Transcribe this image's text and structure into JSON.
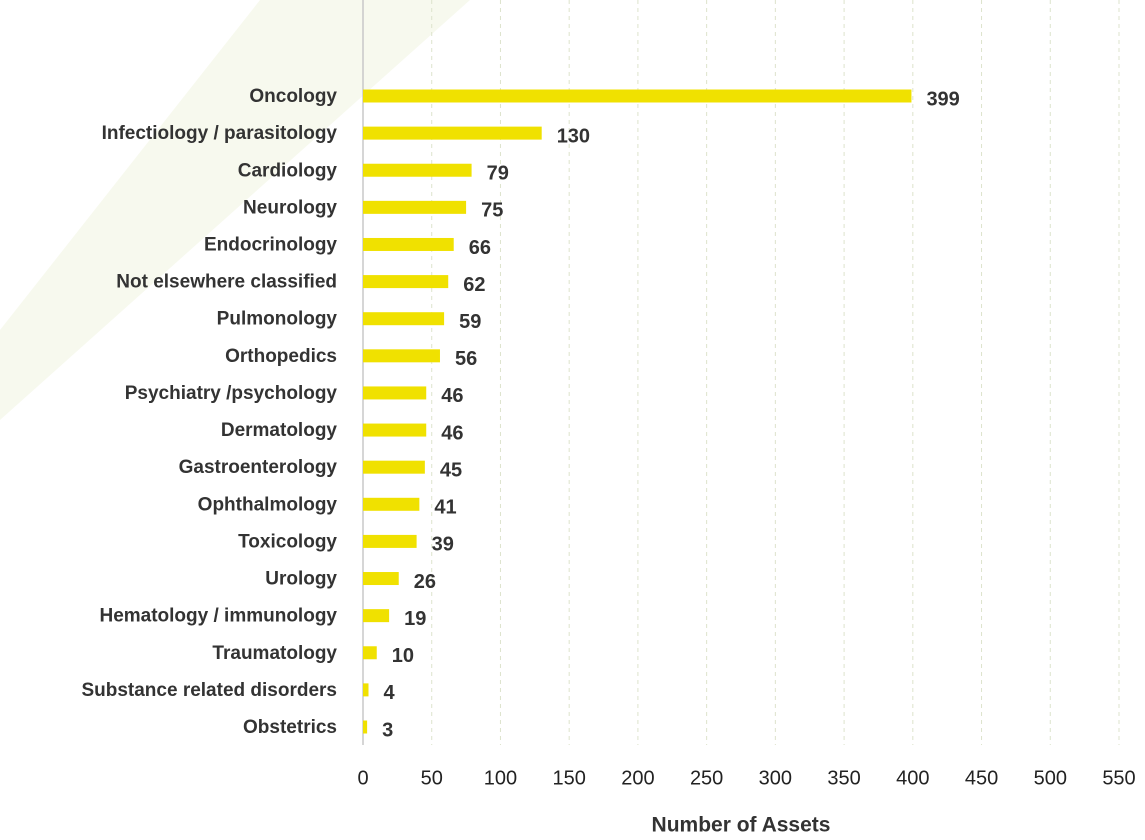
{
  "chart_data": {
    "type": "bar",
    "orientation": "horizontal",
    "categories": [
      "Oncology",
      "Infectiology / parasitology",
      "Cardiology",
      "Neurology",
      "Endocrinology",
      "Not elsewhere classified",
      "Pulmonology",
      "Orthopedics",
      "Psychiatry /psychology",
      "Dermatology",
      "Gastroenterology",
      "Ophthalmology",
      "Toxicology",
      "Urology",
      "Hematology / immunology",
      "Traumatology",
      "Substance related disorders",
      "Obstetrics"
    ],
    "values": [
      399,
      130,
      79,
      75,
      66,
      62,
      59,
      56,
      46,
      46,
      45,
      41,
      39,
      26,
      19,
      10,
      4,
      3
    ],
    "color": "#f0e100",
    "x_label": "Number of Assets",
    "xlim": [
      0,
      550
    ],
    "xticks": [
      0,
      50,
      100,
      150,
      200,
      250,
      300,
      350,
      400,
      450,
      500,
      550
    ],
    "grid": true
  }
}
